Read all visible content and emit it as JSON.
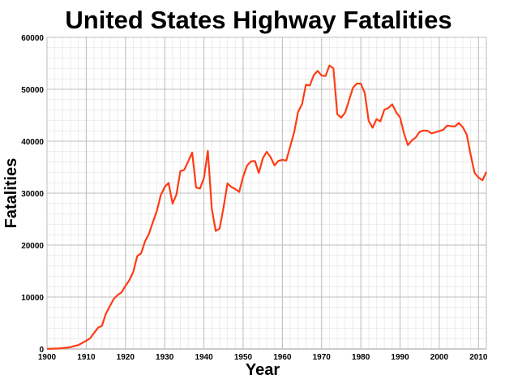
{
  "chart_data": {
    "type": "line",
    "title": "United States Highway Fatalities",
    "xlabel": "Year",
    "ylabel": "Fatalities",
    "xlim": [
      1900,
      2012
    ],
    "ylim": [
      0,
      60000
    ],
    "grid": true,
    "legend": "none",
    "x_ticks": [
      "1900",
      "1910",
      "1920",
      "1930",
      "1940",
      "1950",
      "1960",
      "1970",
      "1980",
      "1990",
      "2000",
      "2010"
    ],
    "y_ticks": [
      "0",
      "10000",
      "20000",
      "30000",
      "40000",
      "50000",
      "60000"
    ],
    "line_color": "#ff3c14",
    "series": [
      {
        "x": [
          1900,
          1901,
          1902,
          1903,
          1904,
          1905,
          1906,
          1907,
          1908,
          1909,
          1910,
          1911,
          1912,
          1913,
          1914,
          1915,
          1916,
          1917,
          1918,
          1919,
          1920,
          1921,
          1922,
          1923,
          1924,
          1925,
          1926,
          1927,
          1928,
          1929,
          1930,
          1931,
          1932,
          1933,
          1934,
          1935,
          1936,
          1937,
          1938,
          1939,
          1940,
          1941,
          1942,
          1943,
          1944,
          1945,
          1946,
          1947,
          1948,
          1949,
          1950,
          1951,
          1952,
          1953,
          1954,
          1955,
          1956,
          1957,
          1958,
          1959,
          1960,
          1961,
          1962,
          1963,
          1964,
          1965,
          1966,
          1967,
          1968,
          1969,
          1970,
          1971,
          1972,
          1973,
          1974,
          1975,
          1976,
          1977,
          1978,
          1979,
          1980,
          1981,
          1982,
          1983,
          1984,
          1985,
          1986,
          1987,
          1988,
          1989,
          1990,
          1991,
          1992,
          1993,
          1994,
          1995,
          1996,
          1997,
          1998,
          1999,
          2000,
          2001,
          2002,
          2003,
          2004,
          2005,
          2006,
          2007,
          2008,
          2009,
          2010,
          2011,
          2012
        ],
        "y": [
          36,
          54,
          79,
          117,
          172,
          252,
          338,
          581,
          751,
          1174,
          1599,
          2043,
          3100,
          4076,
          4468,
          6779,
          8200,
          9630,
          10390,
          10896,
          12155,
          13253,
          14859,
          17870,
          18400,
          20771,
          22194,
          24470,
          26557,
          29592,
          31204,
          31963,
          27979,
          29746,
          34240,
          34494,
          36126,
          37819,
          31083,
          30895,
          32914,
          38142,
          27007,
          22727,
          23165,
          27249,
          31874,
          31193,
          30775,
          30246,
          33186,
          35309,
          36088,
          36190,
          33890,
          36688,
          37965,
          36932,
          35331,
          36223,
          36399,
          36285,
          38980,
          41723,
          45645,
          47089,
          50894,
          50724,
          52725,
          53543,
          52627,
          52542,
          54589,
          54052,
          45196,
          44525,
          45523,
          47878,
          50331,
          51093,
          51091,
          49301,
          43945,
          42589,
          44257,
          43825,
          46087,
          46390,
          47087,
          45582,
          44599,
          41508,
          39250,
          40150,
          40716,
          41817,
          42065,
          42013,
          41501,
          41717,
          41945,
          42196,
          43005,
          42884,
          42836,
          43510,
          42708,
          41259,
          37423,
          33883,
          32999,
          32479,
          34080
        ]
      }
    ]
  }
}
